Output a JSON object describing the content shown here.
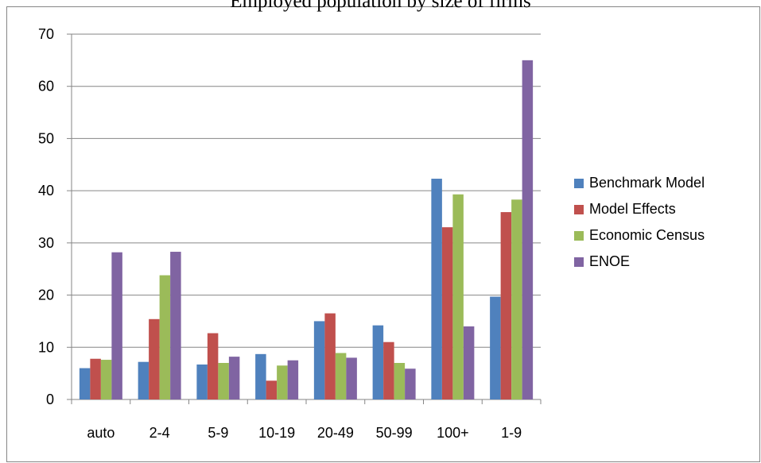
{
  "chart_data": {
    "type": "bar",
    "title": "Employed population by size of firms",
    "categories": [
      "auto",
      "2-4",
      "5-9",
      "10-19",
      "20-49",
      "50-99",
      "100+",
      "1-9"
    ],
    "series": [
      {
        "name": "Benchmark Model",
        "color": "#4F81BD",
        "values": [
          6.0,
          7.2,
          6.7,
          8.7,
          15.0,
          14.2,
          42.3,
          19.7
        ]
      },
      {
        "name": "Model Effects",
        "color": "#C0504D",
        "values": [
          7.8,
          15.4,
          12.7,
          3.6,
          16.5,
          11.0,
          33.0,
          35.9
        ]
      },
      {
        "name": "Economic Census",
        "color": "#9BBB59",
        "values": [
          7.6,
          23.8,
          7.0,
          6.5,
          8.9,
          7.0,
          39.3,
          38.3
        ]
      },
      {
        "name": "ENOE",
        "color": "#8064A2",
        "values": [
          28.2,
          28.3,
          8.2,
          7.5,
          8.0,
          5.9,
          14.0,
          65.0
        ]
      }
    ],
    "yticks": [
      0,
      10,
      20,
      30,
      40,
      50,
      60,
      70
    ],
    "ylim": [
      0,
      70
    ],
    "xlabel": "",
    "ylabel": "",
    "grid": "horizontal",
    "legend_position": "right"
  }
}
